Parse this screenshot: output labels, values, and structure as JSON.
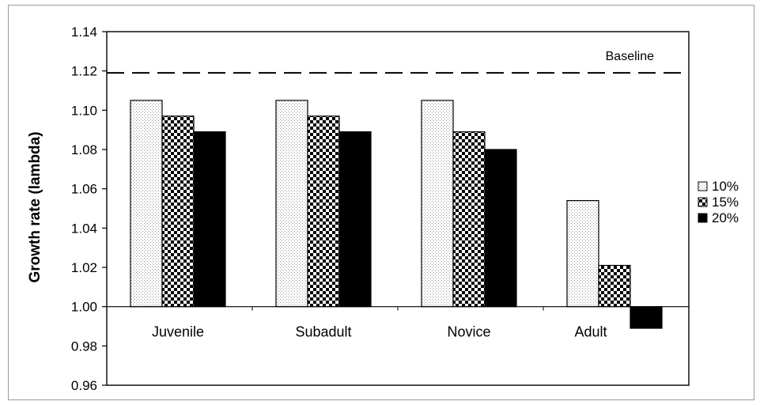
{
  "chart_data": {
    "type": "bar",
    "title": "",
    "xlabel": "",
    "ylabel": "Growth rate (lambda)",
    "categories": [
      "Juvenile",
      "Subadult",
      "Novice",
      "Adult"
    ],
    "series": [
      {
        "name": "10%",
        "values": [
          1.105,
          1.105,
          1.105,
          1.054
        ],
        "pattern": "dots"
      },
      {
        "name": "15%",
        "values": [
          1.097,
          1.097,
          1.089,
          1.021
        ],
        "pattern": "checker"
      },
      {
        "name": "20%",
        "values": [
          1.089,
          1.089,
          1.08,
          0.989
        ],
        "pattern": "solid"
      }
    ],
    "ylim": [
      0.96,
      1.14
    ],
    "yticks": [
      "1.14",
      "1.12",
      "1.10",
      "1.08",
      "1.06",
      "1.04",
      "1.02",
      "1.00",
      "0.98",
      "0.96"
    ],
    "bar_baseline": 1.0,
    "reference_line": {
      "label": "Baseline",
      "value": 1.119,
      "style": "dashed"
    },
    "grid": false,
    "legend_position": "right"
  }
}
